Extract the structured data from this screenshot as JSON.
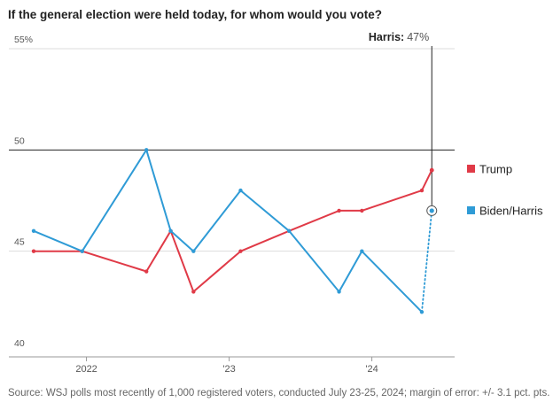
{
  "title": "If the general election were held today, for whom would you vote?",
  "source": "Source: WSJ polls most recently of 1,000 registered voters, conducted July 23-25, 2024; margin of error: +/- 3.1 pct. pts.",
  "callout": {
    "name": "Harris",
    "value": "47%"
  },
  "colors": {
    "trump": "#e03a47",
    "biden_harris": "#2f9bd6",
    "grid": "#dddddd",
    "axis": "#222222"
  },
  "chart_data": {
    "type": "line",
    "title": "If the general election were held today, for whom would you vote?",
    "xlabel": "",
    "ylabel": "",
    "ylim": [
      40,
      55
    ],
    "xlim": [
      2021.63,
      2024.58
    ],
    "yticks": [
      {
        "value": 55,
        "label": "55%"
      },
      {
        "value": 50,
        "label": "50"
      },
      {
        "value": 45,
        "label": "45"
      },
      {
        "value": 40,
        "label": "40"
      }
    ],
    "xticks": [
      {
        "value": 2022.0,
        "label": "2022"
      },
      {
        "value": 2023.0,
        "label": "'23"
      },
      {
        "value": 2024.0,
        "label": "'24"
      }
    ],
    "reference_line": 50,
    "grid": true,
    "legend": "right",
    "series": [
      {
        "name": "Trump",
        "color": "#e03a47",
        "x": [
          2021.63,
          2021.97,
          2022.42,
          2022.59,
          2022.75,
          2023.08,
          2023.42,
          2023.77,
          2023.93,
          2024.35,
          2024.42
        ],
        "values": [
          45,
          45,
          44,
          46,
          43,
          45,
          46,
          47,
          47,
          48,
          49
        ]
      },
      {
        "name": "Biden/Harris",
        "color": "#2f9bd6",
        "x": [
          2021.63,
          2021.97,
          2022.42,
          2022.59,
          2022.75,
          2023.08,
          2023.42,
          2023.77,
          2023.93,
          2024.35
        ],
        "values": [
          46,
          45,
          50,
          46,
          45,
          48,
          46,
          43,
          45,
          42
        ],
        "final_point": {
          "x": 2024.42,
          "value": 47
        }
      }
    ]
  }
}
